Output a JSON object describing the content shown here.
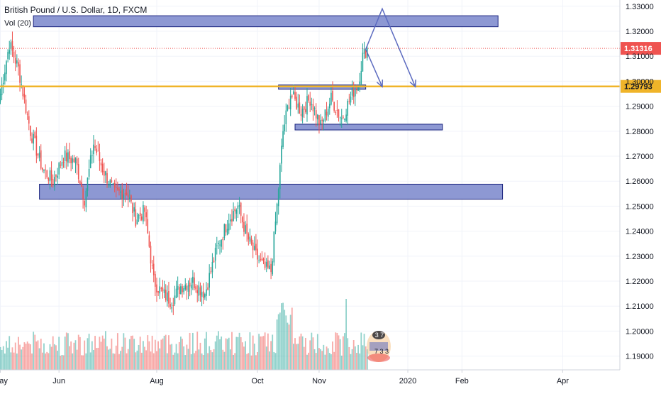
{
  "header": {
    "symbol_title": "British Pound / U.S. Dollar, 1D, FXCM",
    "volume_indicator": "Vol (20)"
  },
  "chart_data": {
    "type": "candlestick",
    "price_axis": {
      "ylim": [
        1.1845,
        1.3325
      ],
      "tick_labels": [
        "1.33000",
        "1.32000",
        "1.31000",
        "1.30000",
        "1.29000",
        "1.28000",
        "1.27000",
        "1.26000",
        "1.25000",
        "1.24000",
        "1.23000",
        "1.22000",
        "1.21000",
        "1.20000",
        "1.19000"
      ],
      "tick_values": [
        1.33,
        1.32,
        1.31,
        1.3,
        1.29,
        1.28,
        1.27,
        1.26,
        1.25,
        1.24,
        1.23,
        1.22,
        1.21,
        1.2,
        1.19
      ]
    },
    "time_axis": {
      "labels": [
        "May",
        "Jun",
        "Aug",
        "Oct",
        "Nov",
        "2020",
        "Feb",
        "Apr"
      ],
      "bar_index": [
        0,
        39,
        104,
        171,
        212,
        271,
        307,
        374
      ]
    },
    "last_price": {
      "label": "1.31316",
      "value": 1.31316,
      "color": "#ef5350"
    },
    "horizontal_line": {
      "label": "1.29793",
      "value": 1.29793,
      "color": "#f0b429"
    },
    "zones": [
      {
        "from_bar": 22,
        "to_bar": 331,
        "low": 1.3218,
        "high": 1.3262
      },
      {
        "from_bar": 185,
        "to_bar": 243,
        "low": 1.2968,
        "high": 1.2985
      },
      {
        "from_bar": 196,
        "to_bar": 294,
        "low": 1.2805,
        "high": 1.2828
      },
      {
        "from_bar": 26,
        "to_bar": 334,
        "low": 1.2528,
        "high": 1.2588
      }
    ],
    "projection_arrows": [
      {
        "points": [
          [
            243,
            1.3128
          ],
          [
            254,
            1.329
          ],
          [
            276,
            1.2978
          ]
        ]
      },
      {
        "points": [
          [
            243,
            1.3128
          ],
          [
            254,
            1.2978
          ]
        ]
      }
    ],
    "colors": {
      "up": "#26a69a",
      "down": "#ef5350",
      "zone_fill": "#7986cb",
      "zone_stroke": "#1a237e",
      "arrow": "#5c6bc0"
    },
    "key_points": [
      {
        "bar": 0,
        "close": 1.295
      },
      {
        "bar": 6,
        "close": 1.315
      },
      {
        "bar": 12,
        "close": 1.305
      },
      {
        "bar": 20,
        "close": 1.28
      },
      {
        "bar": 28,
        "close": 1.265
      },
      {
        "bar": 35,
        "close": 1.26
      },
      {
        "bar": 42,
        "close": 1.27
      },
      {
        "bar": 50,
        "close": 1.268
      },
      {
        "bar": 56,
        "close": 1.253
      },
      {
        "bar": 62,
        "close": 1.275
      },
      {
        "bar": 68,
        "close": 1.265
      },
      {
        "bar": 76,
        "close": 1.255
      },
      {
        "bar": 84,
        "close": 1.256
      },
      {
        "bar": 90,
        "close": 1.245
      },
      {
        "bar": 96,
        "close": 1.248
      },
      {
        "bar": 102,
        "close": 1.22
      },
      {
        "bar": 108,
        "close": 1.215
      },
      {
        "bar": 114,
        "close": 1.212
      },
      {
        "bar": 120,
        "close": 1.218
      },
      {
        "bar": 128,
        "close": 1.22
      },
      {
        "bar": 136,
        "close": 1.215
      },
      {
        "bar": 144,
        "close": 1.233
      },
      {
        "bar": 152,
        "close": 1.245
      },
      {
        "bar": 158,
        "close": 1.25
      },
      {
        "bar": 164,
        "close": 1.238
      },
      {
        "bar": 170,
        "close": 1.23
      },
      {
        "bar": 176,
        "close": 1.225
      },
      {
        "bar": 180,
        "close": 1.224
      },
      {
        "bar": 184,
        "close": 1.25
      },
      {
        "bar": 188,
        "close": 1.28
      },
      {
        "bar": 193,
        "close": 1.295
      },
      {
        "bar": 200,
        "close": 1.288
      },
      {
        "bar": 206,
        "close": 1.293
      },
      {
        "bar": 213,
        "close": 1.282
      },
      {
        "bar": 220,
        "close": 1.293
      },
      {
        "bar": 227,
        "close": 1.285
      },
      {
        "bar": 234,
        "close": 1.295
      },
      {
        "bar": 238,
        "close": 1.299
      },
      {
        "bar": 241,
        "close": 1.31
      },
      {
        "bar": 244,
        "close": 1.3132
      }
    ]
  },
  "watermark": {
    "top_text": "3 7",
    "bottom_text": "7 3 3"
  }
}
